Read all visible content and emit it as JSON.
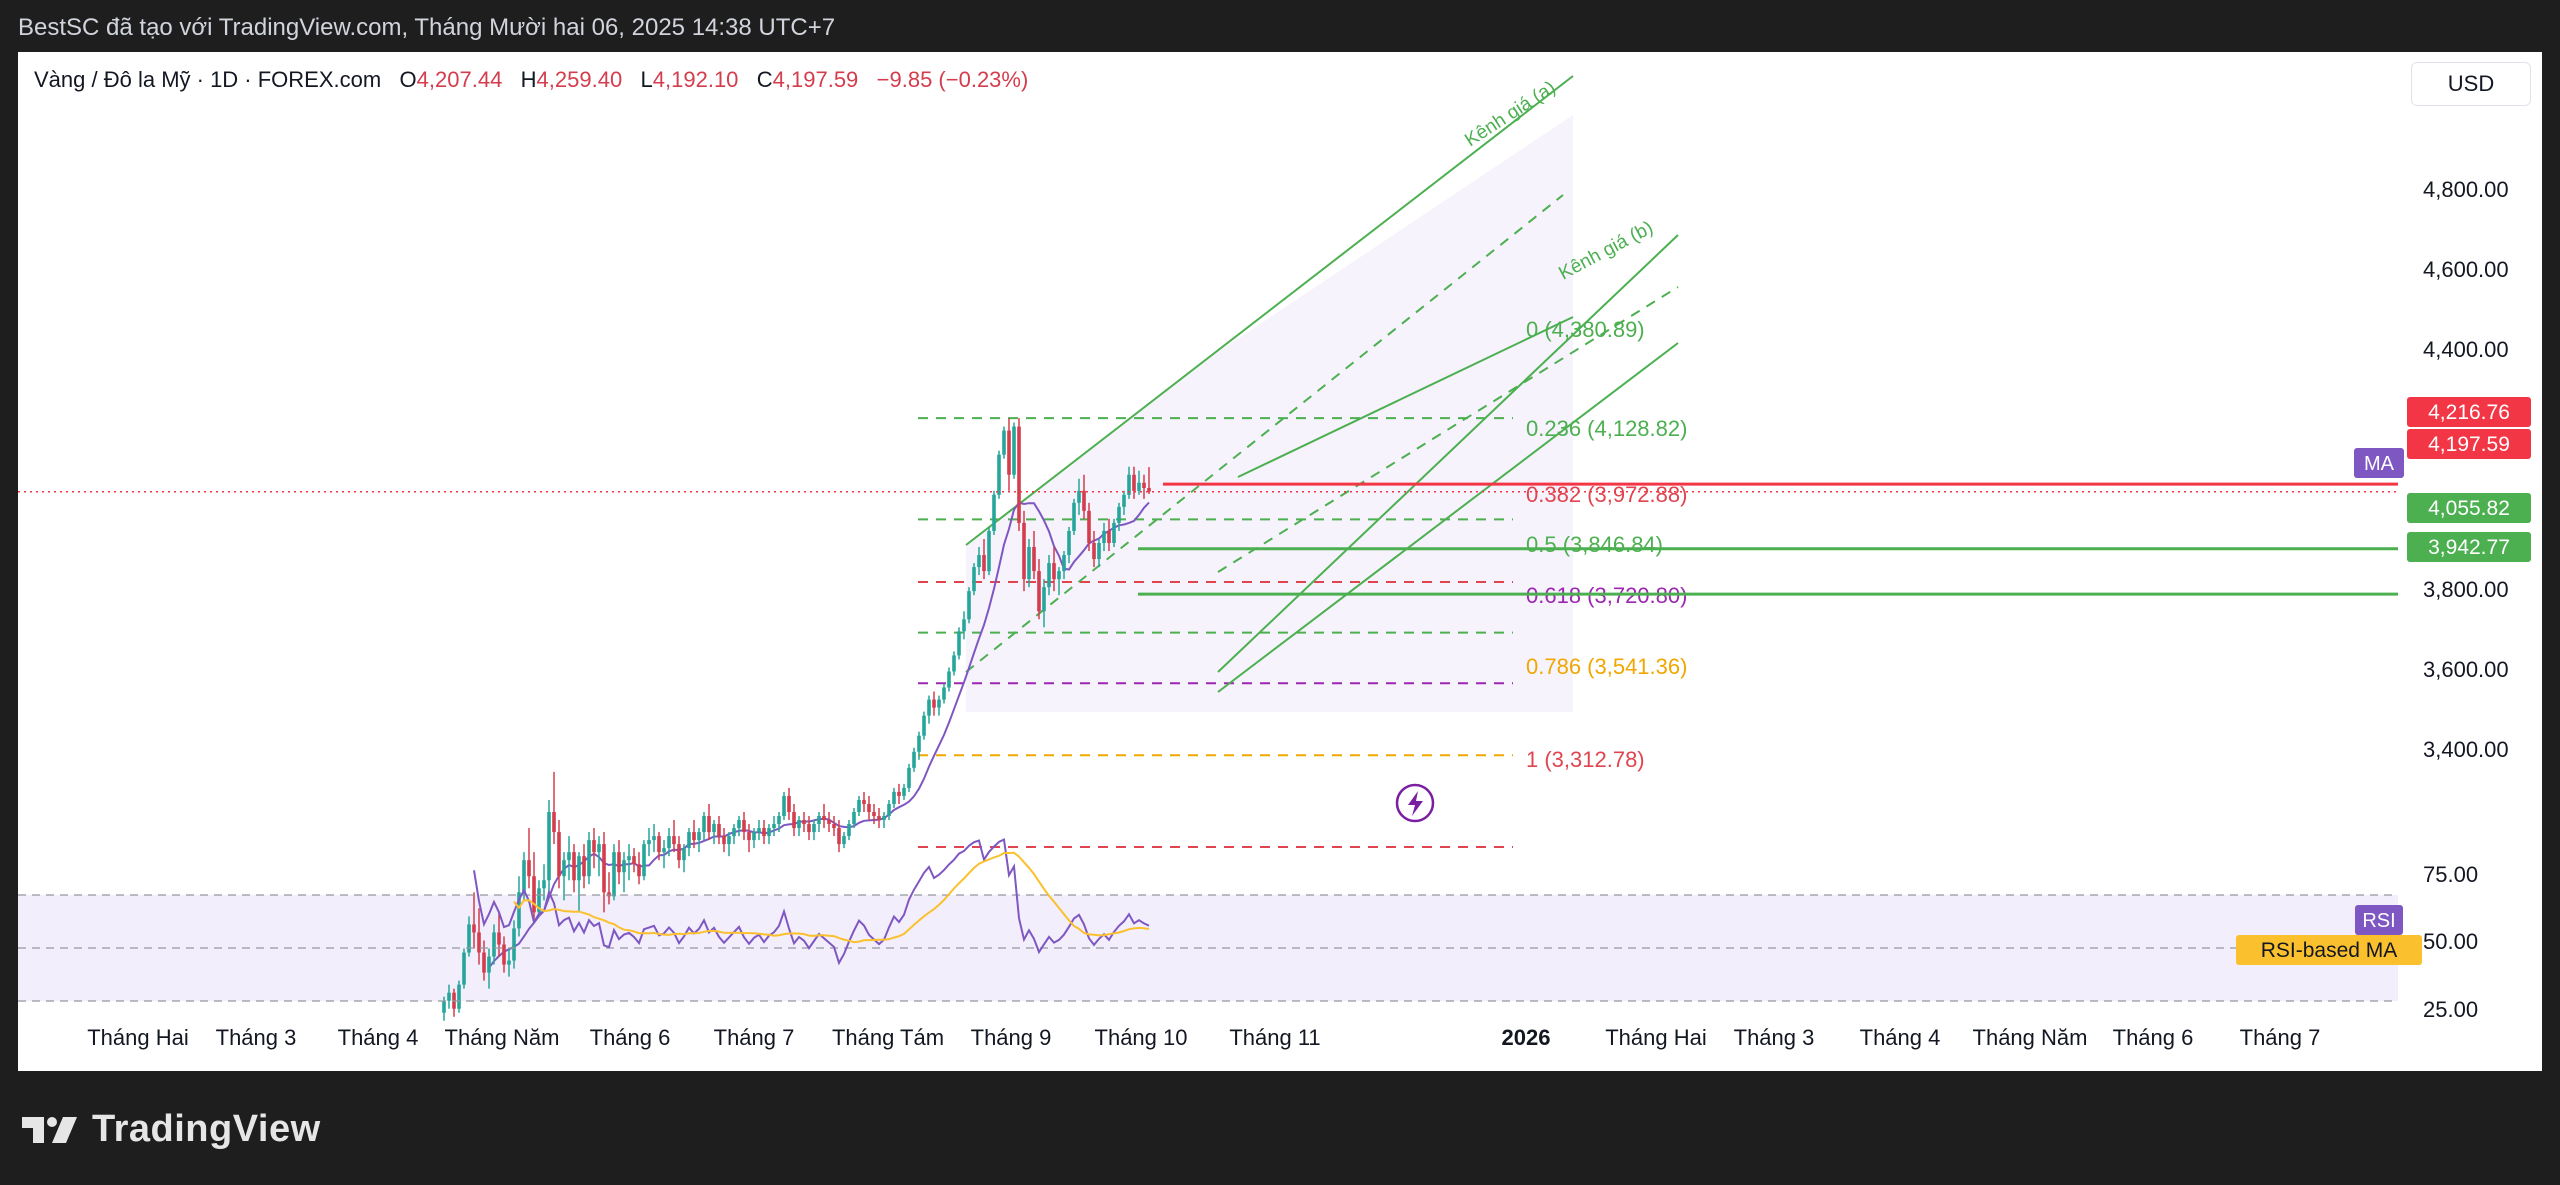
{
  "header": {
    "title": "BestSC đã tạo với TradingView.com, Tháng Mười hai 06, 2025 14:38 UTC+7"
  },
  "legend": {
    "symbol": "Vàng / Đô la Mỹ · 1D · FOREX.com",
    "o_label": "O",
    "o": "4,207.44",
    "h_label": "H",
    "h": "4,259.40",
    "l_label": "L",
    "l": "4,192.10",
    "c_label": "C",
    "c": "4,197.59",
    "change": "−9.85 (−0.23%)"
  },
  "currency_button": "USD",
  "footer": {
    "brand": "TradingView"
  },
  "colors": {
    "down": "#d33d4d",
    "up": "#26a69a",
    "channel": "#4caf50",
    "ma": "#7e57c2",
    "rsi_ma": "#fbc02d",
    "fib_orange": "#f0a700"
  },
  "chart_data": {
    "type": "candlestick",
    "price_axis": {
      "ticks": [
        "4,800.00",
        "4,600.00",
        "4,400.00",
        "3,800.00",
        "3,600.00",
        "3,400.00"
      ]
    },
    "time_axis": [
      "Tháng Hai",
      "Tháng 3",
      "Tháng 4",
      "Tháng Năm",
      "Tháng 6",
      "Tháng 7",
      "Tháng Tám",
      "Tháng 9",
      "Tháng 10",
      "Tháng 11",
      "2026",
      "Tháng Hai",
      "Tháng 3",
      "Tháng 4",
      "Tháng Năm",
      "Tháng 6",
      "Tháng 7"
    ],
    "price_labels": [
      {
        "value": "4,216.76",
        "color": "#f23645"
      },
      {
        "value": "4,197.59",
        "color": "#f23645"
      },
      {
        "value": "4,055.82",
        "color": "#4caf50"
      },
      {
        "value": "3,942.77",
        "color": "#4caf50"
      }
    ],
    "indicator_badges": {
      "ma": "MA",
      "rsi": "RSI",
      "rsi_ma": "RSI-based MA"
    },
    "channel_labels": [
      "Kênh giá (a)",
      "Kênh giá (b)"
    ],
    "fib_levels": [
      {
        "label": "0 (4,380.89)",
        "price": 4380.89,
        "color": "#4caf50"
      },
      {
        "label": "0.236 (4,128.82)",
        "price": 4128.82,
        "color": "#4caf50"
      },
      {
        "label": "0.382 (3,972.88)",
        "price": 3972.88,
        "color": "#e0454f"
      },
      {
        "label": "0.5 (3,846.84)",
        "price": 3846.84,
        "color": "#4caf50"
      },
      {
        "label": "0.618 (3,720.80)",
        "price": 3720.8,
        "color": "#9c27b0"
      },
      {
        "label": "0.786 (3,541.36)",
        "price": 3541.36,
        "color": "#f0a700"
      },
      {
        "label": "1 (3,312.78)",
        "price": 3312.78,
        "color": "#e0454f"
      }
    ],
    "horizontal_lines": [
      4216.76,
      4055.82,
      3942.77
    ],
    "rsi_axis": {
      "ticks": [
        "75.00",
        "50.00",
        "25.00"
      ],
      "levels": [
        70,
        50,
        30
      ]
    },
    "candles": [
      [
        2900,
        2940,
        2880,
        2930
      ],
      [
        2930,
        2970,
        2910,
        2950
      ],
      [
        2950,
        2960,
        2890,
        2910
      ],
      [
        2910,
        2980,
        2900,
        2970
      ],
      [
        2970,
        3060,
        2960,
        3050
      ],
      [
        3050,
        3140,
        3040,
        3120
      ],
      [
        3120,
        3200,
        3060,
        3100
      ],
      [
        3100,
        3160,
        3020,
        3050
      ],
      [
        3050,
        3080,
        2980,
        3000
      ],
      [
        3000,
        3060,
        2960,
        3040
      ],
      [
        3040,
        3120,
        3020,
        3100
      ],
      [
        3100,
        3150,
        3040,
        3070
      ],
      [
        3070,
        3090,
        3000,
        3020
      ],
      [
        3020,
        3060,
        2990,
        3030
      ],
      [
        3030,
        3130,
        3010,
        3110
      ],
      [
        3110,
        3240,
        3090,
        3200
      ],
      [
        3200,
        3300,
        3180,
        3280
      ],
      [
        3280,
        3360,
        3210,
        3240
      ],
      [
        3240,
        3300,
        3130,
        3150
      ],
      [
        3150,
        3230,
        3140,
        3210
      ],
      [
        3210,
        3270,
        3180,
        3230
      ],
      [
        3230,
        3430,
        3200,
        3400
      ],
      [
        3400,
        3500,
        3320,
        3350
      ],
      [
        3350,
        3380,
        3210,
        3240
      ],
      [
        3240,
        3300,
        3180,
        3280
      ],
      [
        3280,
        3340,
        3230,
        3300
      ],
      [
        3300,
        3320,
        3200,
        3230
      ],
      [
        3230,
        3300,
        3150,
        3290
      ],
      [
        3290,
        3320,
        3210,
        3240
      ],
      [
        3240,
        3350,
        3220,
        3330
      ],
      [
        3330,
        3360,
        3260,
        3300
      ],
      [
        3300,
        3340,
        3240,
        3320
      ],
      [
        3320,
        3350,
        3150,
        3200
      ],
      [
        3200,
        3250,
        3170,
        3190
      ],
      [
        3190,
        3320,
        3180,
        3300
      ],
      [
        3300,
        3330,
        3220,
        3250
      ],
      [
        3250,
        3300,
        3200,
        3280
      ],
      [
        3280,
        3320,
        3230,
        3290
      ],
      [
        3290,
        3310,
        3250,
        3270
      ],
      [
        3270,
        3300,
        3220,
        3240
      ],
      [
        3240,
        3330,
        3230,
        3320
      ],
      [
        3320,
        3360,
        3290,
        3330
      ],
      [
        3330,
        3370,
        3300,
        3340
      ],
      [
        3340,
        3350,
        3280,
        3300
      ],
      [
        3300,
        3330,
        3260,
        3310
      ],
      [
        3310,
        3360,
        3290,
        3340
      ],
      [
        3340,
        3380,
        3300,
        3320
      ],
      [
        3320,
        3340,
        3260,
        3280
      ],
      [
        3280,
        3320,
        3250,
        3310
      ],
      [
        3310,
        3360,
        3290,
        3350
      ],
      [
        3350,
        3380,
        3310,
        3330
      ],
      [
        3330,
        3360,
        3300,
        3350
      ],
      [
        3350,
        3400,
        3330,
        3390
      ],
      [
        3390,
        3420,
        3330,
        3350
      ],
      [
        3350,
        3380,
        3320,
        3370
      ],
      [
        3370,
        3390,
        3320,
        3340
      ],
      [
        3340,
        3360,
        3300,
        3320
      ],
      [
        3320,
        3350,
        3290,
        3340
      ],
      [
        3340,
        3370,
        3320,
        3360
      ],
      [
        3360,
        3390,
        3340,
        3380
      ],
      [
        3380,
        3400,
        3330,
        3350
      ],
      [
        3350,
        3370,
        3300,
        3330
      ],
      [
        3330,
        3360,
        3310,
        3350
      ],
      [
        3350,
        3380,
        3330,
        3360
      ],
      [
        3360,
        3380,
        3320,
        3340
      ],
      [
        3340,
        3370,
        3320,
        3360
      ],
      [
        3360,
        3390,
        3340,
        3370
      ],
      [
        3370,
        3400,
        3350,
        3390
      ],
      [
        3390,
        3450,
        3380,
        3440
      ],
      [
        3440,
        3460,
        3380,
        3400
      ],
      [
        3400,
        3420,
        3340,
        3360
      ],
      [
        3360,
        3390,
        3340,
        3380
      ],
      [
        3380,
        3400,
        3350,
        3370
      ],
      [
        3370,
        3390,
        3330,
        3350
      ],
      [
        3350,
        3380,
        3330,
        3370
      ],
      [
        3370,
        3400,
        3350,
        3390
      ],
      [
        3390,
        3420,
        3360,
        3380
      ],
      [
        3380,
        3400,
        3350,
        3370
      ],
      [
        3370,
        3390,
        3340,
        3360
      ],
      [
        3360,
        3380,
        3300,
        3320
      ],
      [
        3320,
        3350,
        3310,
        3340
      ],
      [
        3340,
        3380,
        3330,
        3370
      ],
      [
        3370,
        3410,
        3360,
        3400
      ],
      [
        3400,
        3440,
        3390,
        3430
      ],
      [
        3430,
        3450,
        3400,
        3420
      ],
      [
        3420,
        3440,
        3380,
        3400
      ],
      [
        3400,
        3420,
        3370,
        3390
      ],
      [
        3390,
        3410,
        3360,
        3380
      ],
      [
        3380,
        3400,
        3360,
        3390
      ],
      [
        3390,
        3430,
        3380,
        3420
      ],
      [
        3420,
        3460,
        3410,
        3450
      ],
      [
        3450,
        3470,
        3420,
        3440
      ],
      [
        3440,
        3470,
        3430,
        3460
      ],
      [
        3460,
        3520,
        3450,
        3510
      ],
      [
        3510,
        3560,
        3500,
        3550
      ],
      [
        3550,
        3600,
        3530,
        3590
      ],
      [
        3590,
        3650,
        3580,
        3640
      ],
      [
        3640,
        3690,
        3620,
        3680
      ],
      [
        3680,
        3700,
        3640,
        3660
      ],
      [
        3660,
        3690,
        3640,
        3680
      ],
      [
        3680,
        3720,
        3670,
        3710
      ],
      [
        3710,
        3760,
        3700,
        3750
      ],
      [
        3750,
        3800,
        3740,
        3790
      ],
      [
        3790,
        3860,
        3780,
        3850
      ],
      [
        3850,
        3900,
        3830,
        3880
      ],
      [
        3880,
        3960,
        3870,
        3950
      ],
      [
        3950,
        4020,
        3940,
        4010
      ],
      [
        4010,
        4060,
        3990,
        4040
      ],
      [
        4040,
        4080,
        3980,
        4000
      ],
      [
        4000,
        4110,
        3990,
        4100
      ],
      [
        4100,
        4200,
        4090,
        4190
      ],
      [
        4190,
        4300,
        4180,
        4290
      ],
      [
        4290,
        4360,
        4280,
        4350
      ],
      [
        4350,
        4380,
        4200,
        4240
      ],
      [
        4240,
        4370,
        4230,
        4360
      ],
      [
        4360,
        4381,
        4100,
        4120
      ],
      [
        4120,
        4150,
        3950,
        3980
      ],
      [
        3980,
        4080,
        3960,
        4060
      ],
      [
        4060,
        4100,
        3980,
        4000
      ],
      [
        4000,
        4030,
        3880,
        3900
      ],
      [
        3900,
        3980,
        3860,
        3960
      ],
      [
        3960,
        4040,
        3940,
        4020
      ],
      [
        4020,
        4060,
        3950,
        3980
      ],
      [
        3980,
        4010,
        3940,
        4000
      ],
      [
        4000,
        4050,
        3980,
        4040
      ],
      [
        4040,
        4110,
        4020,
        4100
      ],
      [
        4100,
        4180,
        4090,
        4170
      ],
      [
        4170,
        4230,
        4140,
        4200
      ],
      [
        4200,
        4240,
        4130,
        4150
      ],
      [
        4150,
        4170,
        4050,
        4070
      ],
      [
        4070,
        4100,
        4010,
        4030
      ],
      [
        4030,
        4080,
        4010,
        4070
      ],
      [
        4070,
        4120,
        4050,
        4100
      ],
      [
        4100,
        4130,
        4050,
        4070
      ],
      [
        4070,
        4130,
        4060,
        4120
      ],
      [
        4120,
        4170,
        4100,
        4160
      ],
      [
        4160,
        4200,
        4140,
        4190
      ],
      [
        4190,
        4260,
        4180,
        4240
      ],
      [
        4240,
        4260,
        4180,
        4200
      ],
      [
        4200,
        4250,
        4190,
        4220
      ],
      [
        4220,
        4240,
        4180,
        4207
      ],
      [
        4207,
        4259,
        4192,
        4198
      ]
    ]
  }
}
